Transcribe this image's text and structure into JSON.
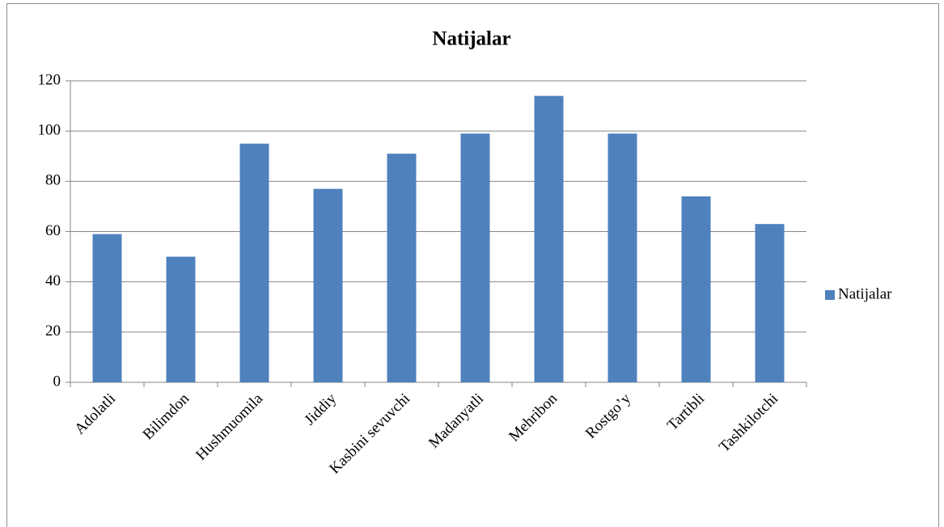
{
  "chart_data": {
    "type": "bar",
    "title": "Natijalar",
    "categories": [
      "Adolatli",
      "Bilimdon",
      "Hushmuomila",
      "Jiddiy",
      "Kasbini sevuvchi",
      "Madanyatli",
      "Mehribon",
      "Rostgo’y",
      "Tartibli",
      "Tashkilotchi"
    ],
    "series": [
      {
        "name": "Natijalar",
        "color": "#4f81bd",
        "values": [
          59,
          50,
          95,
          77,
          91,
          99,
          114,
          99,
          74,
          63
        ]
      }
    ],
    "ylim": [
      0,
      120
    ],
    "yticks": [
      0,
      20,
      40,
      60,
      80,
      100,
      120
    ],
    "grid": true,
    "legend": "right"
  }
}
